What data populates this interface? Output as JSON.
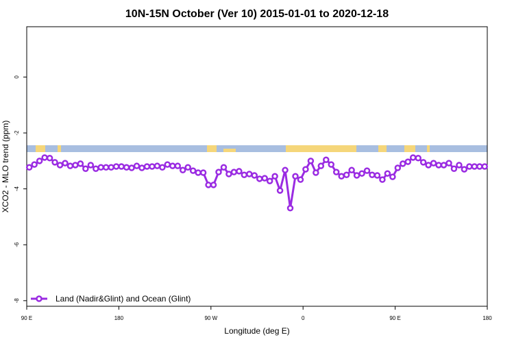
{
  "chart_data": {
    "type": "line",
    "title": "10N-15N October (Ver 10)   2015-01-01 to 2020-12-18",
    "x_label": "Longitude (deg E)",
    "y_label": "XCO2 - MLO trend (ppm)",
    "xlim": [
      90,
      540
    ],
    "xticks": [
      {
        "value": 90,
        "label": "90 E"
      },
      {
        "value": 180,
        "label": "180"
      },
      {
        "value": 270,
        "label": "90 W"
      },
      {
        "value": 360,
        "label": "0"
      },
      {
        "value": 450,
        "label": "90 E"
      },
      {
        "value": 540,
        "label": "180"
      }
    ],
    "ylim": [
      -8.2,
      1.8
    ],
    "yticks": [
      0,
      -2,
      -4,
      -6,
      -8
    ],
    "legend": "bottom-left",
    "x": [
      92.5,
      97.5,
      102.5,
      107.5,
      112.5,
      117.5,
      122.5,
      127.5,
      132.5,
      137.5,
      142.5,
      147.5,
      152.5,
      157.5,
      162.5,
      167.5,
      172.5,
      177.5,
      182.5,
      187.5,
      192.5,
      197.5,
      202.5,
      207.5,
      212.5,
      217.5,
      222.5,
      227.5,
      232.5,
      237.5,
      242.5,
      247.5,
      252.5,
      257.5,
      262.5,
      267.5,
      272.5,
      277.5,
      282.5,
      287.5,
      292.5,
      297.5,
      302.5,
      307.5,
      312.5,
      317.5,
      322.5,
      327.5,
      332.5,
      337.5,
      342.5,
      347.5,
      352.5,
      357.5,
      362.5,
      367.5,
      372.5,
      377.5,
      382.5,
      387.5,
      392.5,
      397.5,
      402.5,
      407.5,
      412.5,
      417.5,
      422.5,
      427.5,
      432.5,
      437.5,
      442.5,
      447.5,
      452.5,
      457.5,
      462.5,
      467.5,
      472.5,
      477.5,
      482.5,
      487.5,
      492.5,
      497.5,
      502.5,
      507.5,
      512.5,
      517.5,
      522.5,
      527.5,
      532.5,
      537.5
    ],
    "series": [
      {
        "name": "Land (Nadir&Glint) and Ocean (Glint)",
        "color": "#9a2be2",
        "values": [
          -3.23,
          -3.13,
          -3.0,
          -2.88,
          -2.9,
          -3.05,
          -3.15,
          -3.08,
          -3.18,
          -3.15,
          -3.1,
          -3.28,
          -3.15,
          -3.28,
          -3.23,
          -3.23,
          -3.23,
          -3.2,
          -3.2,
          -3.23,
          -3.25,
          -3.18,
          -3.25,
          -3.2,
          -3.2,
          -3.18,
          -3.23,
          -3.13,
          -3.18,
          -3.18,
          -3.33,
          -3.23,
          -3.35,
          -3.42,
          -3.42,
          -3.86,
          -3.86,
          -3.4,
          -3.23,
          -3.47,
          -3.4,
          -3.37,
          -3.5,
          -3.47,
          -3.52,
          -3.64,
          -3.62,
          -3.72,
          -3.55,
          -4.06,
          -3.33,
          -4.69,
          -3.55,
          -3.67,
          -3.3,
          -3.0,
          -3.42,
          -3.18,
          -2.96,
          -3.13,
          -3.4,
          -3.55,
          -3.5,
          -3.33,
          -3.52,
          -3.45,
          -3.35,
          -3.5,
          -3.52,
          -3.67,
          -3.45,
          -3.57,
          -3.25,
          -3.1,
          -3.03,
          -2.88,
          -2.9,
          -3.05,
          -3.15,
          -3.08,
          -3.15,
          -3.15,
          -3.08,
          -3.28,
          -3.15,
          -3.3,
          -3.2,
          -3.2,
          -3.2,
          -3.2
        ]
      }
    ]
  }
}
